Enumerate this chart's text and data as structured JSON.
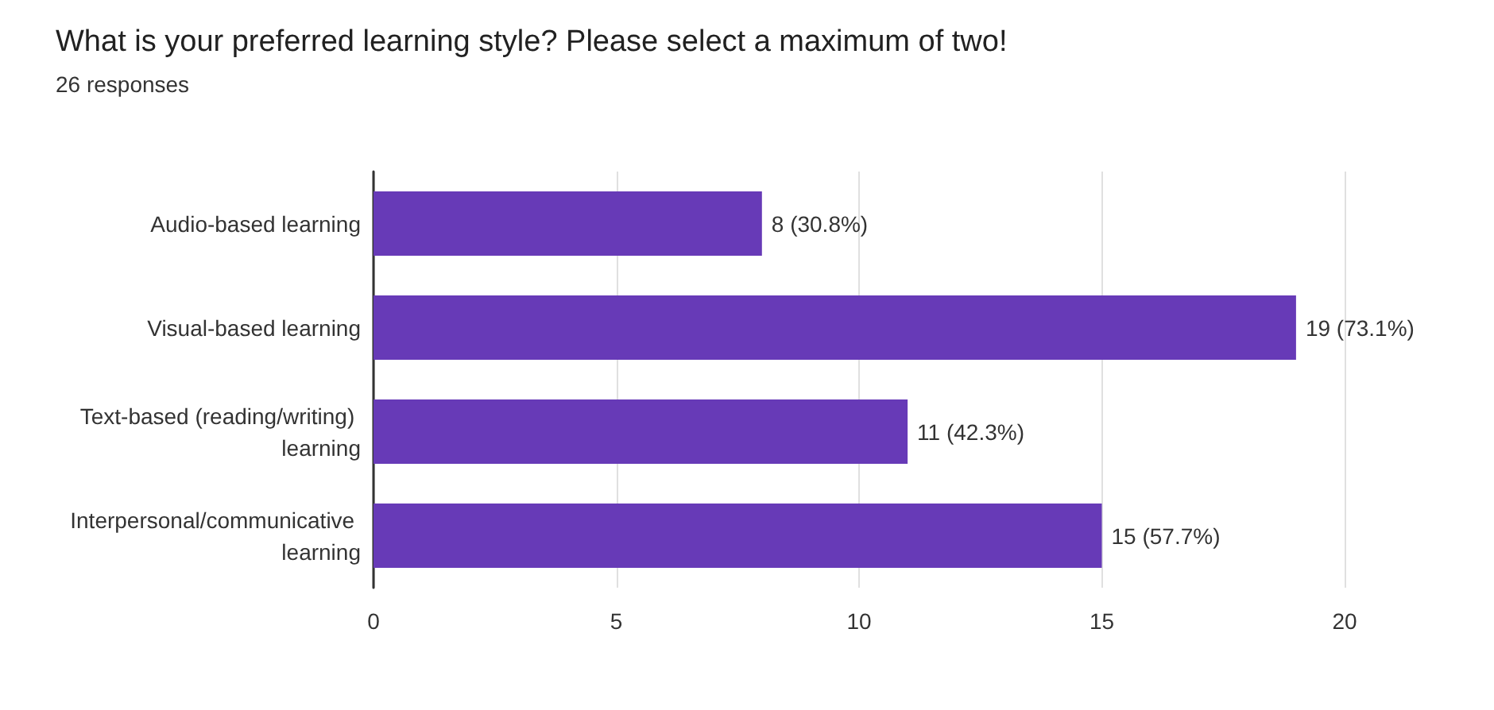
{
  "chart_data": {
    "type": "bar",
    "orientation": "horizontal",
    "title": "What is your preferred learning style? Please select a maximum of two!",
    "subtitle": "26 responses",
    "categories": [
      "Audio-based learning",
      "Visual-based learning",
      "Text-based (reading/writing) learning",
      "Interpersonal/communicative learning"
    ],
    "values": [
      8,
      19,
      11,
      15
    ],
    "color": "#673ab7",
    "value_labels": [
      "8 (30.8%)",
      "19 (73.1%)",
      "11 (42.3%)",
      "15 (57.7%)"
    ],
    "xlim": [
      0,
      20
    ],
    "xticks": [
      0,
      5,
      10,
      15,
      20
    ],
    "grid": "x"
  }
}
